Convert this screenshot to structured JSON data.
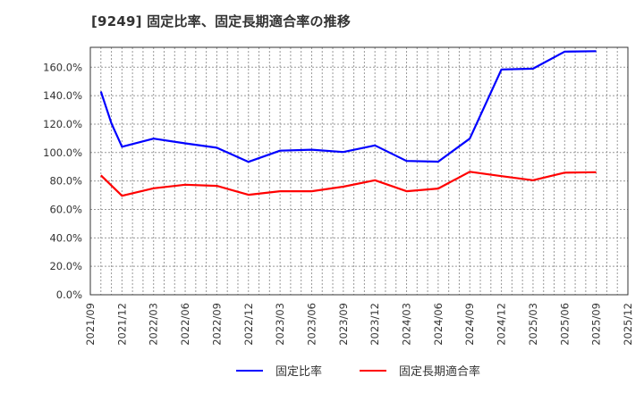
{
  "title": "[9249]  固定比率、固定長期適合率の推移",
  "colors": {
    "series_fixed_ratio": "#0000ff",
    "series_fixed_long_term": "#ff0000",
    "grid": "#999999",
    "axis": "#333333"
  },
  "legend": {
    "items": [
      {
        "label": "固定比率",
        "color": "#0000ff"
      },
      {
        "label": "固定長期適合率",
        "color": "#ff0000"
      }
    ]
  },
  "chart_data": {
    "type": "line",
    "title": "[9249]  固定比率、固定長期適合率の推移",
    "xlabel": "",
    "ylabel": "",
    "ylim": [
      0,
      174
    ],
    "y_ticks": [
      "0.0%",
      "20.0%",
      "40.0%",
      "60.0%",
      "80.0%",
      "100.0%",
      "120.0%",
      "140.0%",
      "160.0%"
    ],
    "y_tick_values": [
      0,
      20,
      40,
      60,
      80,
      100,
      120,
      140,
      160
    ],
    "x_ticks": [
      "2021/09",
      "2021/12",
      "2022/03",
      "2022/06",
      "2022/09",
      "2022/12",
      "2023/03",
      "2023/06",
      "2023/09",
      "2023/12",
      "2024/03",
      "2024/06",
      "2024/09",
      "2024/12",
      "2025/03",
      "2025/06",
      "2025/09",
      "2025/12"
    ],
    "x_range": [
      "2021/09",
      "2025/12"
    ],
    "grid": true,
    "legend_position": "bottom",
    "series": [
      {
        "name": "固定比率",
        "color": "#0000ff",
        "x": [
          "2021/10",
          "2021/11",
          "2021/12",
          "2022/03",
          "2022/06",
          "2022/09",
          "2022/12",
          "2023/03",
          "2023/06",
          "2023/09",
          "2023/12",
          "2024/03",
          "2024/06",
          "2024/09",
          "2024/12",
          "2025/03",
          "2025/06",
          "2025/09"
        ],
        "values": [
          142.9,
          120.5,
          104.1,
          109.8,
          106.5,
          103.4,
          93.5,
          101.3,
          102.0,
          100.4,
          105.0,
          94.1,
          93.6,
          109.8,
          158.4,
          159.0,
          171.0,
          171.3
        ]
      },
      {
        "name": "固定長期適合率",
        "color": "#ff0000",
        "x": [
          "2021/10",
          "2021/12",
          "2022/03",
          "2022/06",
          "2022/09",
          "2022/12",
          "2023/03",
          "2023/06",
          "2023/09",
          "2023/12",
          "2024/03",
          "2024/06",
          "2024/09",
          "2024/12",
          "2025/03",
          "2025/06",
          "2025/09"
        ],
        "values": [
          84.0,
          69.6,
          74.9,
          77.4,
          76.6,
          70.3,
          72.8,
          72.8,
          76.0,
          80.5,
          72.8,
          74.7,
          86.5,
          83.4,
          80.5,
          85.9,
          86.2
        ]
      }
    ]
  }
}
